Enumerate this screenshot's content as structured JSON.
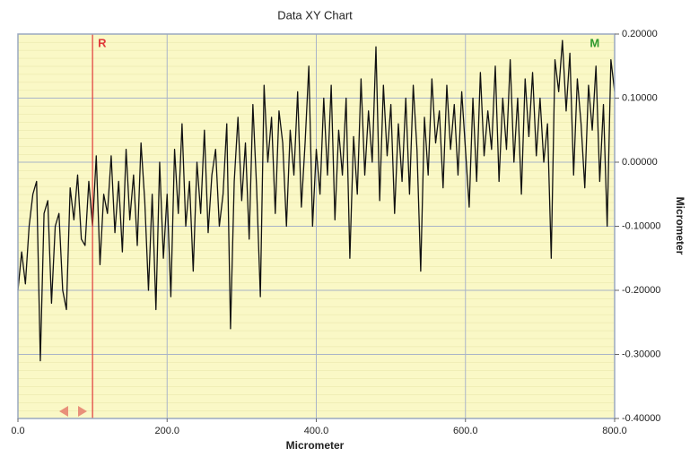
{
  "chart_data": {
    "type": "line",
    "title": "Data XY Chart",
    "x_label": "Micrometer",
    "y_label": "Micrometer",
    "color": "#111111",
    "grid": true,
    "xlim": [
      0,
      800
    ],
    "ylim": [
      -0.4,
      0.2
    ],
    "xticks": [
      {
        "value": 0,
        "label": "0.0"
      },
      {
        "value": 200,
        "label": "200.0"
      },
      {
        "value": 400,
        "label": "400.0"
      },
      {
        "value": 600,
        "label": "600.0"
      },
      {
        "value": 800,
        "label": "800.0"
      }
    ],
    "yticks": [
      {
        "value": 0.2,
        "label": "0.20000"
      },
      {
        "value": 0.1,
        "label": "0.10000"
      },
      {
        "value": 0,
        "label": "0.00000"
      },
      {
        "value": -0.1,
        "label": "-0.10000"
      },
      {
        "value": -0.2,
        "label": "-0.20000"
      },
      {
        "value": -0.3,
        "label": "-0.30000"
      },
      {
        "value": -0.4,
        "label": "-0.40000"
      }
    ],
    "cursors": [
      {
        "label": "R",
        "x": 100,
        "color": "#e03a3a"
      },
      {
        "label": "M",
        "x": 780,
        "color": "#2e9a2e"
      }
    ],
    "x": [
      0,
      5,
      10,
      15,
      20,
      25,
      30,
      35,
      40,
      45,
      50,
      55,
      60,
      65,
      70,
      75,
      80,
      85,
      90,
      95,
      100,
      105,
      110,
      115,
      120,
      125,
      130,
      135,
      140,
      145,
      150,
      155,
      160,
      165,
      170,
      175,
      180,
      185,
      190,
      195,
      200,
      205,
      210,
      215,
      220,
      225,
      230,
      235,
      240,
      245,
      250,
      255,
      260,
      265,
      270,
      275,
      280,
      285,
      290,
      295,
      300,
      305,
      310,
      315,
      320,
      325,
      330,
      335,
      340,
      345,
      350,
      355,
      360,
      365,
      370,
      375,
      380,
      385,
      390,
      395,
      400,
      405,
      410,
      415,
      420,
      425,
      430,
      435,
      440,
      445,
      450,
      455,
      460,
      465,
      470,
      475,
      480,
      485,
      490,
      495,
      500,
      505,
      510,
      515,
      520,
      525,
      530,
      535,
      540,
      545,
      550,
      555,
      560,
      565,
      570,
      575,
      580,
      585,
      590,
      595,
      600,
      605,
      610,
      615,
      620,
      625,
      630,
      635,
      640,
      645,
      650,
      655,
      660,
      665,
      670,
      675,
      680,
      685,
      690,
      695,
      700,
      705,
      710,
      715,
      720,
      725,
      730,
      735,
      740,
      745,
      750,
      755,
      760,
      765,
      770,
      775,
      780,
      785,
      790,
      795,
      800
    ],
    "values": [
      -0.2,
      -0.14,
      -0.19,
      -0.1,
      -0.05,
      -0.03,
      -0.31,
      -0.08,
      -0.06,
      -0.22,
      -0.1,
      -0.08,
      -0.2,
      -0.23,
      -0.04,
      -0.09,
      -0.02,
      -0.12,
      -0.13,
      -0.03,
      -0.1,
      0.01,
      -0.16,
      -0.05,
      -0.08,
      0.01,
      -0.11,
      -0.03,
      -0.14,
      0.02,
      -0.09,
      -0.02,
      -0.13,
      0.03,
      -0.06,
      -0.2,
      -0.05,
      -0.23,
      0.0,
      -0.15,
      -0.05,
      -0.21,
      0.02,
      -0.08,
      0.06,
      -0.1,
      -0.03,
      -0.17,
      0.0,
      -0.08,
      0.05,
      -0.11,
      -0.02,
      0.02,
      -0.1,
      -0.05,
      0.06,
      -0.26,
      -0.03,
      0.07,
      -0.06,
      0.03,
      -0.12,
      0.09,
      -0.04,
      -0.21,
      0.12,
      0.0,
      0.07,
      -0.08,
      0.08,
      0.03,
      -0.1,
      0.05,
      -0.02,
      0.11,
      -0.07,
      0.03,
      0.15,
      -0.1,
      0.02,
      -0.05,
      0.1,
      -0.02,
      0.12,
      -0.09,
      0.05,
      -0.02,
      0.1,
      -0.15,
      0.04,
      -0.05,
      0.13,
      -0.02,
      0.08,
      0.0,
      0.18,
      -0.06,
      0.12,
      0.01,
      0.09,
      -0.08,
      0.06,
      -0.03,
      0.1,
      -0.05,
      0.12,
      0.02,
      -0.17,
      0.07,
      -0.02,
      0.13,
      0.03,
      0.08,
      -0.04,
      0.12,
      0.02,
      0.09,
      -0.02,
      0.11,
      0.02,
      -0.07,
      0.1,
      -0.03,
      0.14,
      0.01,
      0.08,
      0.02,
      0.15,
      -0.03,
      0.1,
      0.02,
      0.16,
      0.0,
      0.1,
      -0.05,
      0.13,
      0.04,
      0.14,
      0.01,
      0.1,
      0.0,
      0.06,
      -0.15,
      0.16,
      0.11,
      0.19,
      0.08,
      0.17,
      -0.02,
      0.13,
      0.06,
      -0.04,
      0.12,
      0.05,
      0.15,
      -0.03,
      0.09,
      -0.1,
      0.16,
      0.11
    ]
  }
}
